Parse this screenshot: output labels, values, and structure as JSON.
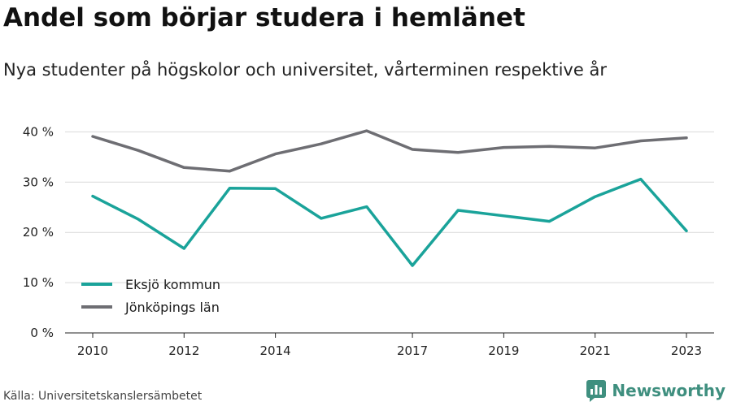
{
  "header": {
    "title": "Andel som börjar studera i hemlänet",
    "subtitle": "Nya studenter på högskolor och universitet, vårterminen respektive år"
  },
  "footer": {
    "source": "Källa: Universitetskanslersämbetet",
    "brand": "Newsworthy"
  },
  "colors": {
    "teal": "#1aa39a",
    "gray": "#6e6e73",
    "grid": "#d9d9d9",
    "brand": "#3f8f7f"
  },
  "chart_data": {
    "type": "line",
    "x": [
      2010,
      2011,
      2012,
      2013,
      2014,
      2015,
      2016,
      2017,
      2018,
      2019,
      2020,
      2021,
      2022,
      2023
    ],
    "x_tick_labels": [
      "2010",
      "2012",
      "2014",
      "2017",
      "2019",
      "2021",
      "2023"
    ],
    "y_ticks": [
      0,
      10,
      20,
      30,
      40
    ],
    "y_tick_labels": [
      "0 %",
      "10 %",
      "20 %",
      "30 %",
      "40 %"
    ],
    "ylim": [
      0,
      42
    ],
    "xlim": [
      2010,
      2023
    ],
    "grid": true,
    "legend_position": "bottom-left",
    "series": [
      {
        "name": "Eksjö kommun",
        "color": "#1aa39a",
        "values": [
          27.2,
          22.6,
          16.8,
          28.8,
          28.7,
          22.8,
          25.1,
          13.4,
          24.4,
          23.3,
          22.2,
          27.1,
          30.6,
          20.3
        ]
      },
      {
        "name": "Jönköpings län",
        "color": "#6e6e73",
        "values": [
          39.1,
          36.3,
          32.9,
          32.2,
          35.6,
          37.6,
          40.2,
          36.5,
          35.9,
          36.9,
          37.1,
          36.8,
          38.2,
          38.8
        ]
      }
    ]
  }
}
